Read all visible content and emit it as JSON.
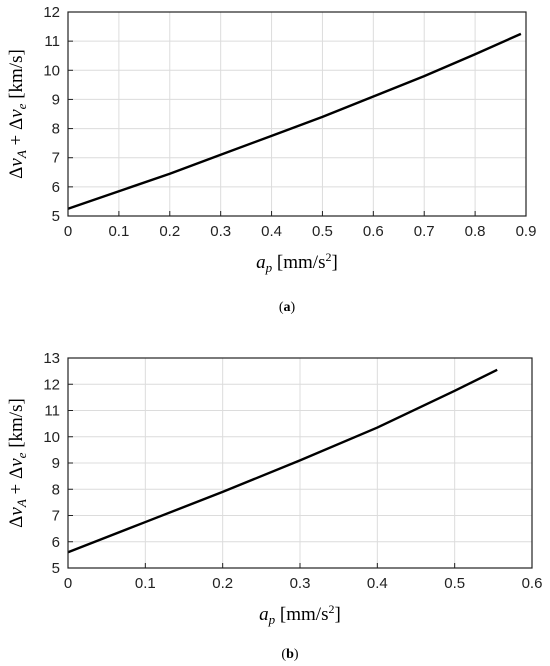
{
  "chart_data": [
    {
      "type": "line",
      "caption": {
        "open": "(",
        "letter": "a",
        "close": ")"
      },
      "ylabel": {
        "d1": "Δ",
        "v1": "v",
        "s1": "A",
        "plus": " + Δ",
        "v2": "v",
        "s2": "e",
        "unit": " [km/s]"
      },
      "xlabel": {
        "a": "a",
        "sub": "p",
        "unit": " [mm/s",
        "sup": "2",
        "close": "]"
      },
      "xlim": [
        0,
        0.9
      ],
      "ylim": [
        5,
        12
      ],
      "xticks": [
        0,
        0.1,
        0.2,
        0.3,
        0.4,
        0.5,
        0.6,
        0.7,
        0.8,
        0.9
      ],
      "yticks": [
        5,
        6,
        7,
        8,
        9,
        10,
        11,
        12
      ],
      "grid": true,
      "series": [
        {
          "color": "#000000",
          "x": [
            0,
            0.1,
            0.2,
            0.3,
            0.4,
            0.5,
            0.6,
            0.7,
            0.8,
            0.89
          ],
          "y": [
            5.25,
            5.85,
            6.45,
            7.1,
            7.75,
            8.4,
            9.1,
            9.8,
            10.55,
            11.25
          ]
        }
      ]
    },
    {
      "type": "line",
      "caption": {
        "open": "(",
        "letter": "b",
        "close": ")"
      },
      "ylabel": {
        "d1": "Δ",
        "v1": "v",
        "s1": "A",
        "plus": " + Δ",
        "v2": "v",
        "s2": "e",
        "unit": " [km/s]"
      },
      "xlabel": {
        "a": "a",
        "sub": "p",
        "unit": " [mm/s",
        "sup": "2",
        "close": "]"
      },
      "xlim": [
        0,
        0.6
      ],
      "ylim": [
        5,
        13
      ],
      "xticks": [
        0,
        0.1,
        0.2,
        0.3,
        0.4,
        0.5,
        0.6
      ],
      "yticks": [
        5,
        6,
        7,
        8,
        9,
        10,
        11,
        12,
        13
      ],
      "grid": true,
      "series": [
        {
          "color": "#000000",
          "x": [
            0,
            0.1,
            0.2,
            0.3,
            0.4,
            0.5,
            0.555
          ],
          "y": [
            5.6,
            6.75,
            7.9,
            9.1,
            10.35,
            11.75,
            12.55
          ]
        }
      ]
    }
  ]
}
